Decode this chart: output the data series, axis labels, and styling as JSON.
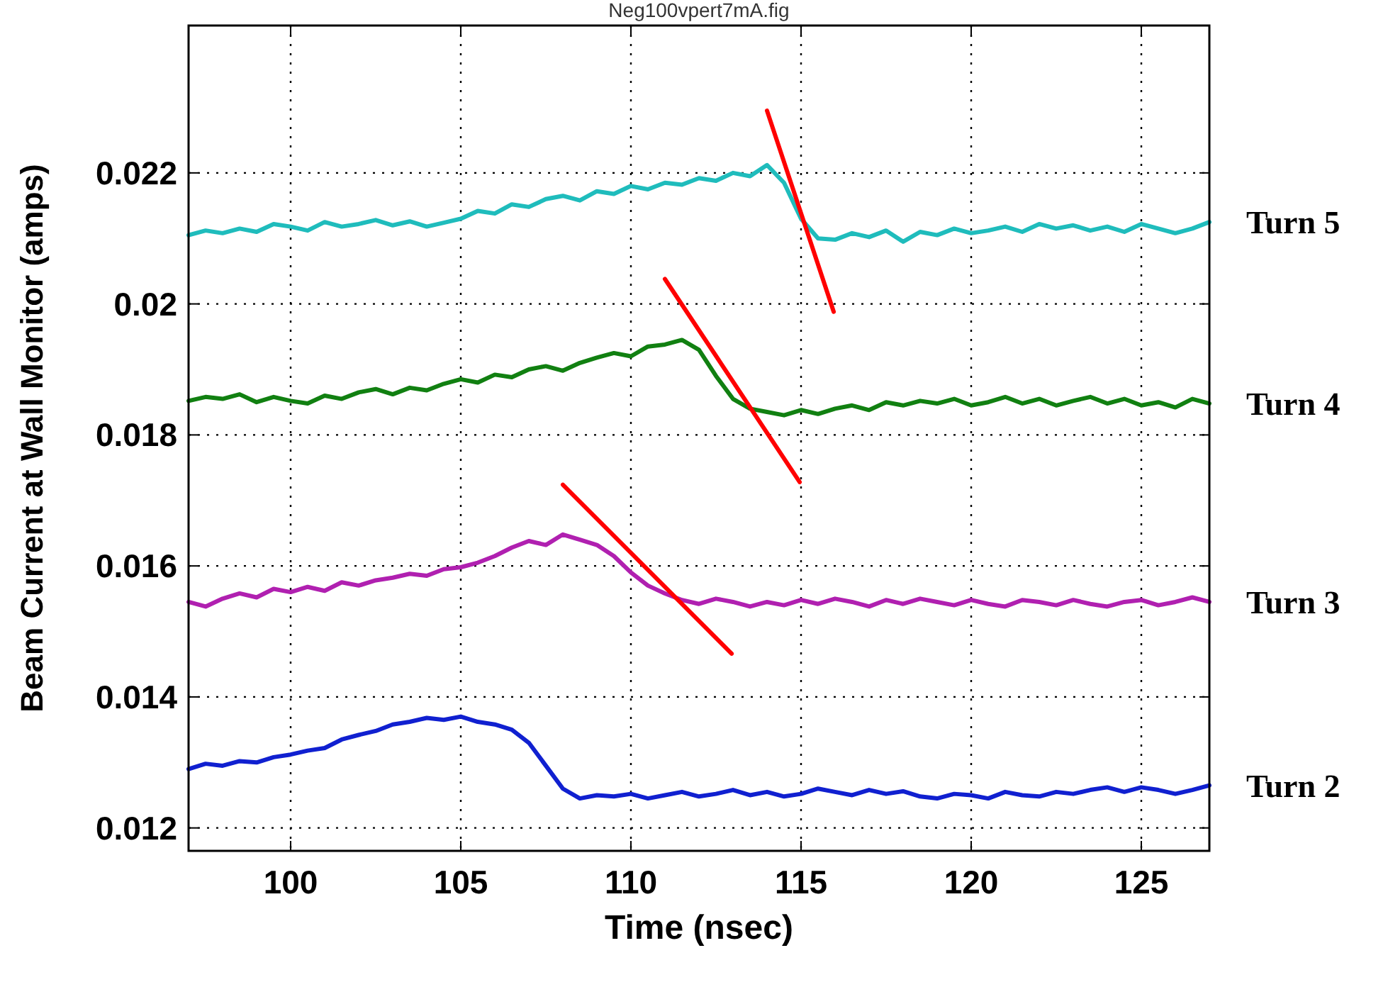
{
  "chart_data": {
    "type": "line",
    "title": "Neg100vpert7mA.fig",
    "xlabel": "Time (nsec)",
    "ylabel": "Beam Current at Wall Monitor (amps)",
    "xlim": [
      97,
      127
    ],
    "ylim": [
      0.01165,
      0.02425
    ],
    "xticks": [
      100,
      105,
      110,
      115,
      120,
      125
    ],
    "yticks": [
      0.012,
      0.014,
      0.016,
      0.018,
      0.02,
      0.022
    ],
    "grid": true,
    "line_style": "solid",
    "marker": "none",
    "x": [
      97,
      97.5,
      98,
      98.5,
      99,
      99.5,
      100,
      100.5,
      101,
      101.5,
      102,
      102.5,
      103,
      103.5,
      104,
      104.5,
      105,
      105.5,
      106,
      106.5,
      107,
      107.5,
      108,
      108.5,
      109,
      109.5,
      110,
      110.5,
      111,
      111.5,
      112,
      112.5,
      113,
      113.5,
      114,
      114.5,
      115,
      115.5,
      116,
      116.5,
      117,
      117.5,
      118,
      118.5,
      119,
      119.5,
      120,
      120.5,
      121,
      121.5,
      122,
      122.5,
      123,
      123.5,
      124,
      124.5,
      125,
      125.5,
      126,
      126.5,
      127
    ],
    "series": [
      {
        "name": "Turn 5",
        "color": "#1fbcbc",
        "values": [
          0.02105,
          0.02112,
          0.02108,
          0.02115,
          0.0211,
          0.02122,
          0.02118,
          0.02112,
          0.02125,
          0.02118,
          0.02122,
          0.02128,
          0.0212,
          0.02126,
          0.02118,
          0.02124,
          0.0213,
          0.02142,
          0.02138,
          0.02152,
          0.02148,
          0.0216,
          0.02165,
          0.02158,
          0.02172,
          0.02168,
          0.0218,
          0.02175,
          0.02185,
          0.02182,
          0.02192,
          0.02188,
          0.022,
          0.02195,
          0.02212,
          0.02185,
          0.0213,
          0.021,
          0.02098,
          0.02108,
          0.02102,
          0.02112,
          0.02095,
          0.0211,
          0.02105,
          0.02115,
          0.02108,
          0.02112,
          0.02118,
          0.0211,
          0.02122,
          0.02115,
          0.0212,
          0.02112,
          0.02118,
          0.0211,
          0.02122,
          0.02115,
          0.02108,
          0.02115,
          0.02125
        ]
      },
      {
        "name": "Turn 4",
        "color": "#118011",
        "values": [
          0.01852,
          0.01858,
          0.01855,
          0.01862,
          0.0185,
          0.01858,
          0.01852,
          0.01848,
          0.0186,
          0.01855,
          0.01865,
          0.0187,
          0.01862,
          0.01872,
          0.01868,
          0.01878,
          0.01885,
          0.0188,
          0.01892,
          0.01888,
          0.019,
          0.01905,
          0.01898,
          0.0191,
          0.01918,
          0.01925,
          0.0192,
          0.01935,
          0.01938,
          0.01945,
          0.0193,
          0.0189,
          0.01855,
          0.0184,
          0.01835,
          0.0183,
          0.01838,
          0.01832,
          0.0184,
          0.01845,
          0.01838,
          0.0185,
          0.01845,
          0.01852,
          0.01848,
          0.01855,
          0.01845,
          0.0185,
          0.01858,
          0.01848,
          0.01855,
          0.01845,
          0.01852,
          0.01858,
          0.01848,
          0.01855,
          0.01845,
          0.0185,
          0.01842,
          0.01855,
          0.01848
        ]
      },
      {
        "name": "Turn 3",
        "color": "#b020b0",
        "values": [
          0.01545,
          0.01538,
          0.0155,
          0.01558,
          0.01552,
          0.01565,
          0.0156,
          0.01568,
          0.01562,
          0.01575,
          0.0157,
          0.01578,
          0.01582,
          0.01588,
          0.01585,
          0.01595,
          0.01598,
          0.01605,
          0.01615,
          0.01628,
          0.01638,
          0.01632,
          0.01648,
          0.0164,
          0.01632,
          0.01615,
          0.0159,
          0.0157,
          0.01558,
          0.01548,
          0.01542,
          0.0155,
          0.01545,
          0.01538,
          0.01545,
          0.0154,
          0.01548,
          0.01542,
          0.0155,
          0.01545,
          0.01538,
          0.01548,
          0.01542,
          0.0155,
          0.01545,
          0.0154,
          0.01548,
          0.01542,
          0.01538,
          0.01548,
          0.01545,
          0.0154,
          0.01548,
          0.01542,
          0.01538,
          0.01545,
          0.01548,
          0.0154,
          0.01545,
          0.01552,
          0.01545
        ]
      },
      {
        "name": "Turn 2",
        "color": "#1020d0",
        "values": [
          0.0129,
          0.01298,
          0.01295,
          0.01302,
          0.013,
          0.01308,
          0.01312,
          0.01318,
          0.01322,
          0.01335,
          0.01342,
          0.01348,
          0.01358,
          0.01362,
          0.01368,
          0.01365,
          0.0137,
          0.01362,
          0.01358,
          0.0135,
          0.0133,
          0.01295,
          0.0126,
          0.01245,
          0.0125,
          0.01248,
          0.01252,
          0.01245,
          0.0125,
          0.01255,
          0.01248,
          0.01252,
          0.01258,
          0.0125,
          0.01255,
          0.01248,
          0.01252,
          0.0126,
          0.01255,
          0.0125,
          0.01258,
          0.01252,
          0.01256,
          0.01248,
          0.01245,
          0.01252,
          0.0125,
          0.01245,
          0.01255,
          0.0125,
          0.01248,
          0.01255,
          0.01252,
          0.01258,
          0.01262,
          0.01255,
          0.01262,
          0.01258,
          0.01252,
          0.01258,
          0.01265
        ]
      },
      {
        "color": "#ff0000",
        "x": [
          114,
          115.96
        ],
        "values": [
          0.02295,
          0.01988
        ]
      },
      {
        "color": "#ff0000",
        "x": [
          111,
          114.96
        ],
        "values": [
          0.02038,
          0.01728
        ]
      },
      {
        "color": "#ff0000",
        "x": [
          108,
          112.96
        ],
        "values": [
          0.01724,
          0.01466
        ]
      }
    ]
  }
}
